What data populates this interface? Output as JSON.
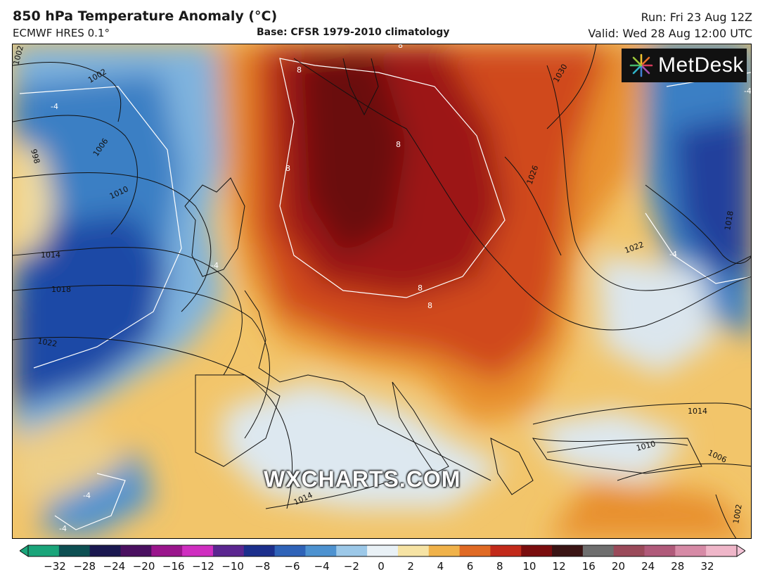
{
  "header": {
    "title": "850 hPa Temperature Anomaly (°C)",
    "model": "ECMWF HRES 0.1°",
    "base": "Base: CFSR 1979-2010 climatology",
    "run": "Run: Fri 23 Aug 12Z",
    "valid": "Valid: Wed 28 Aug 12:00 UTC"
  },
  "logo": {
    "text": "MetDesk",
    "icon": "metdesk-starburst-icon"
  },
  "watermark": "WXCHARTS.COM",
  "map": {
    "region": "Europe and North Atlantic",
    "isobar_labels": [
      "1002",
      "1002",
      "998",
      "1006",
      "1010",
      "1014",
      "1018",
      "1022",
      "1030",
      "1026",
      "1022",
      "1018",
      "1014",
      "1010",
      "1006",
      "1002",
      "1014"
    ],
    "anomaly_contour_labels": [
      "-4",
      "-4",
      "-4",
      "-4",
      "-4",
      "-4",
      "8",
      "8",
      "8",
      "8",
      "8",
      "8"
    ],
    "colors": {
      "strong_cold": "#1b3f9c",
      "cold": "#3b7fc4",
      "cool": "#8fc3e6",
      "neutral": "#eef3f7",
      "mild_warm": "#f3c96a",
      "warm": "#e8902f",
      "hot": "#c9301c",
      "very_hot": "#7a0c0e"
    }
  },
  "colorbar": {
    "ticks": [
      "−32",
      "−28",
      "−24",
      "−20",
      "−16",
      "−12",
      "−10",
      "−8",
      "−6",
      "−4",
      "−2",
      "0",
      "2",
      "4",
      "6",
      "8",
      "10",
      "12",
      "16",
      "20",
      "24",
      "28",
      "32"
    ],
    "colors": [
      "#1aa57a",
      "#0d4f52",
      "#1a1850",
      "#4a1060",
      "#9a158c",
      "#cf2ec0",
      "#5b2690",
      "#1c2f8c",
      "#2f63b8",
      "#4d92d0",
      "#9cc8e8",
      "#e9f1f6",
      "#f6e3a4",
      "#f0b24a",
      "#e06a24",
      "#c22a1a",
      "#7a0d0e",
      "#3a1414",
      "#6e6e6e",
      "#9a4a5a",
      "#b05a7a",
      "#d68aa6",
      "#efb6c9"
    ]
  }
}
